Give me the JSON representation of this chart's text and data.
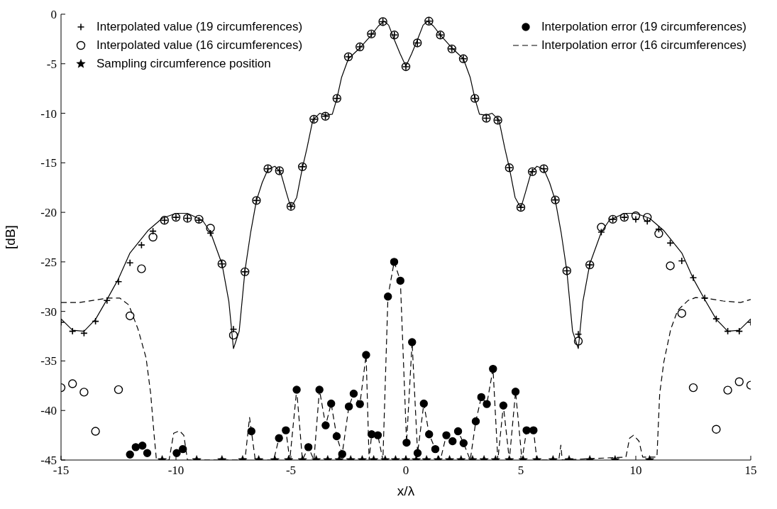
{
  "chart_data": {
    "type": "line",
    "xlabel": "x/λ",
    "ylabel": "[dB]",
    "xlim": [
      -15,
      15
    ],
    "xticks": [
      -15,
      -10,
      -5,
      0,
      5,
      10,
      15
    ],
    "ylim": [
      -45,
      0
    ],
    "yticks": [
      -45,
      -40,
      -35,
      -30,
      -25,
      -20,
      -15,
      -10,
      -5,
      0
    ],
    "legend": "top",
    "series": [
      {
        "color": "#000000",
        "marker": "none",
        "line_style": "solid",
        "x": [
          -15,
          -14.5,
          -14,
          -13.5,
          -13,
          -12.5,
          -12,
          -11.2,
          -10.6,
          -10,
          -9.5,
          -8.85,
          -8.5,
          -8,
          -7.7,
          -7.5,
          -7.25,
          -7,
          -6.75,
          -6.5,
          -6.25,
          -6,
          -5.7,
          -5.45,
          -5.2,
          -5,
          -4.75,
          -4.5,
          -4.3,
          -4.05,
          -3.75,
          -3.5,
          -3.2,
          -3,
          -2.8,
          -2.5,
          -2,
          -1.5,
          -1.2,
          -0.95,
          -0.75,
          -0.5,
          -0.25,
          0,
          0.25,
          0.5,
          0.75,
          0.95,
          1.2,
          1.5,
          2,
          2.5,
          2.8,
          3,
          3.2,
          3.5,
          3.75,
          4.05,
          4.3,
          4.5,
          4.75,
          5,
          5.2,
          5.45,
          5.7,
          6,
          6.25,
          6.5,
          6.75,
          7,
          7.25,
          7.5,
          7.7,
          8,
          8.5,
          8.85,
          9.5,
          10,
          10.6,
          11.2,
          12,
          12.5,
          13,
          13.5,
          14,
          14.5,
          15
        ],
        "values": [
          -30.75,
          -31.9,
          -32,
          -30.8,
          -28.8,
          -26.7,
          -24.1,
          -21.8,
          -20.6,
          -20.1,
          -20.1,
          -20.8,
          -22,
          -25.2,
          -29,
          -33.75,
          -32,
          -25.9,
          -22,
          -18.8,
          -17,
          -15.65,
          -15.35,
          -15.95,
          -18,
          -19.55,
          -18.5,
          -15.5,
          -13.5,
          -10.7,
          -10,
          -10.2,
          -10.1,
          -8.5,
          -6.4,
          -4.5,
          -3.4,
          -2.1,
          -1.2,
          -0.7,
          -1.1,
          -2.6,
          -4,
          -5.25,
          -4,
          -2.6,
          -1.1,
          -0.7,
          -1.2,
          -2.1,
          -3.4,
          -4.5,
          -6.4,
          -8.5,
          -10.1,
          -10.2,
          -10,
          -10.7,
          -13.5,
          -15.5,
          -18.5,
          -19.55,
          -18,
          -15.95,
          -15.35,
          -15.65,
          -17,
          -18.8,
          -22,
          -25.9,
          -32,
          -33.75,
          -29,
          -25.2,
          -22,
          -20.8,
          -20.1,
          -20.1,
          -20.6,
          -21.8,
          -24.1,
          -26.7,
          -28.8,
          -30.8,
          -32,
          -31.9,
          -30.75
        ]
      },
      {
        "type": "scatter",
        "name": "Interpolated value (19 circumferences)",
        "color": "#000000",
        "marker": "cross",
        "x": [
          -15,
          -14.5,
          -14,
          -13.5,
          -13,
          -12.5,
          -12,
          -11.5,
          -11,
          -10.5,
          -10,
          -9.5,
          -9,
          -8.5,
          -8,
          -7.5,
          -7,
          -6.5,
          -6,
          -5.5,
          -5,
          -4.5,
          -4,
          -3.5,
          -3,
          -2.5,
          -2,
          -1.5,
          -1,
          -0.5,
          0,
          0.5,
          1,
          1.5,
          2,
          2.5,
          3,
          3.5,
          4,
          4.5,
          5,
          5.5,
          6,
          6.5,
          7,
          7.5,
          8,
          8.5,
          9,
          9.5,
          10,
          10.5,
          11,
          11.5,
          12,
          12.5,
          13,
          13.5,
          14,
          14.5,
          15
        ],
        "values": [
          -31.1,
          -32.0,
          -32.2,
          -31.0,
          -28.9,
          -27.0,
          -25.1,
          -23.3,
          -21.9,
          -20.8,
          -20.5,
          -20.6,
          -20.8,
          -22.1,
          -25.2,
          -31.8,
          -26.0,
          -18.8,
          -15.6,
          -15.8,
          -19.4,
          -15.4,
          -10.6,
          -10.3,
          -8.5,
          -4.3,
          -3.3,
          -2.0,
          -0.75,
          -2.1,
          -5.3,
          -2.9,
          -0.7,
          -2.1,
          -3.5,
          -4.5,
          -8.5,
          -10.5,
          -10.7,
          -15.5,
          -19.5,
          -15.9,
          -15.6,
          -18.75,
          -25.9,
          -32.3,
          -25.3,
          -22.0,
          -20.7,
          -20.5,
          -20.7,
          -20.9,
          -21.7,
          -23.1,
          -24.9,
          -26.6,
          -28.65,
          -30.75,
          -32.0,
          -32.0,
          -31.1
        ]
      },
      {
        "type": "scatter",
        "name": "Interpolated value (16 circumferences)",
        "color": "#000000",
        "marker": "circle",
        "x": [
          -15,
          -14.5,
          -14,
          -13.5,
          -13,
          -12.5,
          -12,
          -11.5,
          -11,
          -10.5,
          -10,
          -9.5,
          -9,
          -8.5,
          -8,
          -7.5,
          -7,
          -6.5,
          -6,
          -5.5,
          -5,
          -4.5,
          -4,
          -3.5,
          -3,
          -2.5,
          -2,
          -1.5,
          -1,
          -0.5,
          0,
          0.5,
          1,
          1.5,
          2,
          2.5,
          3,
          3.5,
          4,
          4.5,
          5,
          5.5,
          6,
          6.5,
          7,
          7.5,
          8,
          8.5,
          9,
          9.5,
          10,
          10.5,
          11,
          11.5,
          12,
          12.5,
          13,
          13.5,
          14,
          14.5,
          15
        ],
        "values": [
          -37.7,
          -37.3,
          -38.15,
          -42.1,
          null,
          -37.9,
          -30.45,
          -25.7,
          -22.5,
          -20.8,
          -20.5,
          -20.6,
          -20.7,
          -21.6,
          -25.2,
          -32.4,
          -26.0,
          -18.8,
          -15.6,
          -15.8,
          -19.4,
          -15.4,
          -10.6,
          -10.3,
          -8.5,
          -4.3,
          -3.3,
          -2.0,
          -0.75,
          -2.1,
          -5.3,
          -2.9,
          -0.7,
          -2.1,
          -3.5,
          -4.5,
          -8.5,
          -10.5,
          -10.7,
          -15.5,
          -19.5,
          -15.9,
          -15.6,
          -18.75,
          -25.9,
          -33.0,
          -25.3,
          -21.5,
          -20.7,
          -20.5,
          -20.35,
          -20.5,
          -22.15,
          -25.4,
          -30.2,
          -37.7,
          null,
          -41.9,
          -37.95,
          -37.1,
          -37.45
        ]
      },
      {
        "type": "scatter",
        "name": "Sampling circumference position",
        "color": "#000000",
        "marker": "star",
        "x": [
          -10.6,
          -9.1,
          -8.0,
          -7.1,
          -6.4,
          -5.7,
          -5.1,
          -4.5,
          -3.9,
          -3.4,
          -2.9,
          -2.4,
          -1.9,
          -1.4,
          -0.9,
          -0.45,
          0,
          0.45,
          0.9,
          1.4,
          1.9,
          2.4,
          2.9,
          3.4,
          3.9,
          4.5,
          5.1,
          5.7,
          6.4,
          7.1,
          8.0,
          9.1,
          10.6
        ],
        "values": [
          -45,
          -45,
          -45,
          -45,
          -45,
          -45,
          -45,
          -45,
          -45,
          -45,
          -45,
          -45,
          -45,
          -45,
          -45,
          -45,
          -45,
          -45,
          -45,
          -45,
          -45,
          -45,
          -45,
          -45,
          -45,
          -45,
          -45,
          -45,
          -45,
          -45,
          -45,
          -45,
          -45
        ]
      },
      {
        "type": "scatter",
        "name": "Interpolation error (19 circumferences)",
        "color": "#000000",
        "marker": "circle",
        "x": [
          -12.0,
          -11.75,
          -11.46,
          -11.25,
          -9.97,
          -9.7,
          -6.72,
          -5.52,
          -5.22,
          -4.75,
          -4.24,
          -3.76,
          -3.49,
          -3.25,
          -3.01,
          -2.77,
          -2.48,
          -2.27,
          -2.0,
          -1.73,
          -1.49,
          -1.22,
          -0.78,
          -0.51,
          -0.24,
          0.03,
          0.27,
          0.51,
          0.78,
          1.01,
          1.28,
          1.76,
          2.03,
          2.27,
          2.51,
          3.04,
          3.28,
          3.52,
          3.79,
          4.24,
          4.77,
          5.25,
          5.55
        ],
        "values": [
          -44.45,
          -43.7,
          -43.55,
          -44.3,
          -44.3,
          -43.9,
          -42.1,
          -42.8,
          -42.0,
          -37.9,
          -43.7,
          -37.9,
          -41.5,
          -39.3,
          -42.6,
          -44.4,
          -39.6,
          -38.3,
          -39.35,
          -34.4,
          -42.4,
          -42.5,
          -28.5,
          -25.0,
          -26.9,
          -43.25,
          -33.1,
          -44.3,
          -39.3,
          -42.4,
          -43.9,
          -42.5,
          -43.1,
          -42.1,
          -43.3,
          -41.1,
          -38.65,
          -39.35,
          -35.8,
          -39.5,
          -38.1,
          -42.0,
          -42.0
        ]
      },
      {
        "name": "Interpolation error (16 circumferences)",
        "color": "#000000",
        "marker": "none",
        "line_style": "dashed",
        "x": [
          -15,
          -14.2,
          -12.95,
          -12.45,
          -12.05,
          -11.65,
          -11.3,
          -11.1,
          -10.95,
          -10.85,
          -10.3,
          -10.1,
          -9.85,
          -9.66,
          -9.5,
          -7.0,
          -6.8,
          -6.55,
          -5.75,
          -5.52,
          -5.22,
          -5.05,
          -4.75,
          -4.5,
          -4.24,
          -4.0,
          -3.76,
          -3.49,
          -3.25,
          -3.01,
          -2.77,
          -2.48,
          -2.27,
          -2.0,
          -1.73,
          -1.6,
          -1.49,
          -1.22,
          -1.0,
          -0.78,
          -0.51,
          -0.24,
          0.03,
          0.27,
          0.51,
          0.78,
          1.01,
          1.28,
          1.5,
          1.76,
          2.03,
          2.27,
          2.51,
          2.8,
          3.04,
          3.28,
          3.52,
          3.79,
          4.0,
          4.24,
          4.5,
          4.77,
          5.05,
          5.25,
          5.55,
          5.7,
          6.65,
          6.74,
          6.8,
          9.57,
          9.73,
          9.9,
          10.14,
          10.3,
          10.92,
          11.04,
          11.22,
          11.52,
          11.82,
          12.27,
          12.6,
          13.0,
          13.8,
          14.55,
          15
        ],
        "values": [
          -29.1,
          -29.1,
          -28.65,
          -28.65,
          -29.35,
          -31.8,
          -34.7,
          -38.3,
          -42.5,
          -45,
          -45,
          -42.3,
          -42.05,
          -42.5,
          -45,
          -45,
          -40.7,
          -45,
          -45,
          -42.8,
          -42.0,
          -45,
          -37.9,
          -45,
          -43.7,
          -45,
          -37.9,
          -41.5,
          -39.3,
          -42.6,
          -44.4,
          -39.6,
          -38.3,
          -39.35,
          -34.4,
          -45,
          -42.4,
          -42.5,
          -45,
          -28.5,
          -25.0,
          -26.9,
          -43.25,
          -33.1,
          -44.3,
          -39.3,
          -42.4,
          -43.9,
          -45,
          -42.5,
          -43.1,
          -42.1,
          -43.3,
          -45,
          -41.1,
          -38.65,
          -39.35,
          -35.8,
          -45,
          -39.5,
          -45,
          -38.1,
          -45,
          -42.0,
          -42.0,
          -45,
          -45,
          -43.5,
          -45,
          -44.7,
          -42.8,
          -42.5,
          -43.1,
          -44.7,
          -44.7,
          -38.3,
          -35.1,
          -31.8,
          -29.9,
          -28.9,
          -28.6,
          -28.65,
          -28.95,
          -29.1,
          -28.8
        ]
      }
    ]
  }
}
